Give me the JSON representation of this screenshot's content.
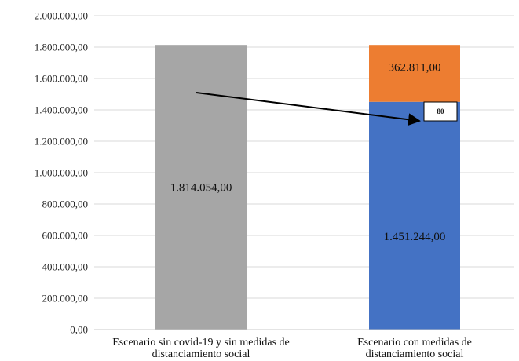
{
  "chart_data": {
    "type": "bar",
    "stacked": true,
    "title": "",
    "xlabel": "",
    "ylabel": "",
    "ylim": [
      0,
      2000000
    ],
    "ytick_step": 200000,
    "y_tick_labels": [
      "0,00",
      "200.000,00",
      "400.000,00",
      "600.000,00",
      "800.000,00",
      "1.000.000,00",
      "1.200.000,00",
      "1.400.000,00",
      "1.600.000,00",
      "1.800.000,00",
      "2.000.000,00"
    ],
    "grid": true,
    "legend": "none",
    "categories": [
      [
        "Escenario sin covid-19 y sin medidas de",
        "distanciamiento social"
      ],
      [
        "Escenario con medidas de",
        "distanciamiento social"
      ]
    ],
    "bars": [
      {
        "segments": [
          {
            "value": 1814054,
            "label": "1.814.054,00",
            "color": "#a6a6a6"
          }
        ]
      },
      {
        "segments": [
          {
            "value": 1451244,
            "label": "1.451.244,00",
            "color": "#4472c4"
          },
          {
            "value": 362811,
            "label": "362.811,00",
            "color": "#ed7d31"
          }
        ]
      }
    ],
    "annotations": [
      {
        "type": "arrow",
        "from_value": 1510000,
        "to_value": 1330000,
        "from_bar": 0,
        "to_bar": 1
      },
      {
        "type": "box",
        "label": "80",
        "bar": 1,
        "value": 1390000
      }
    ]
  }
}
